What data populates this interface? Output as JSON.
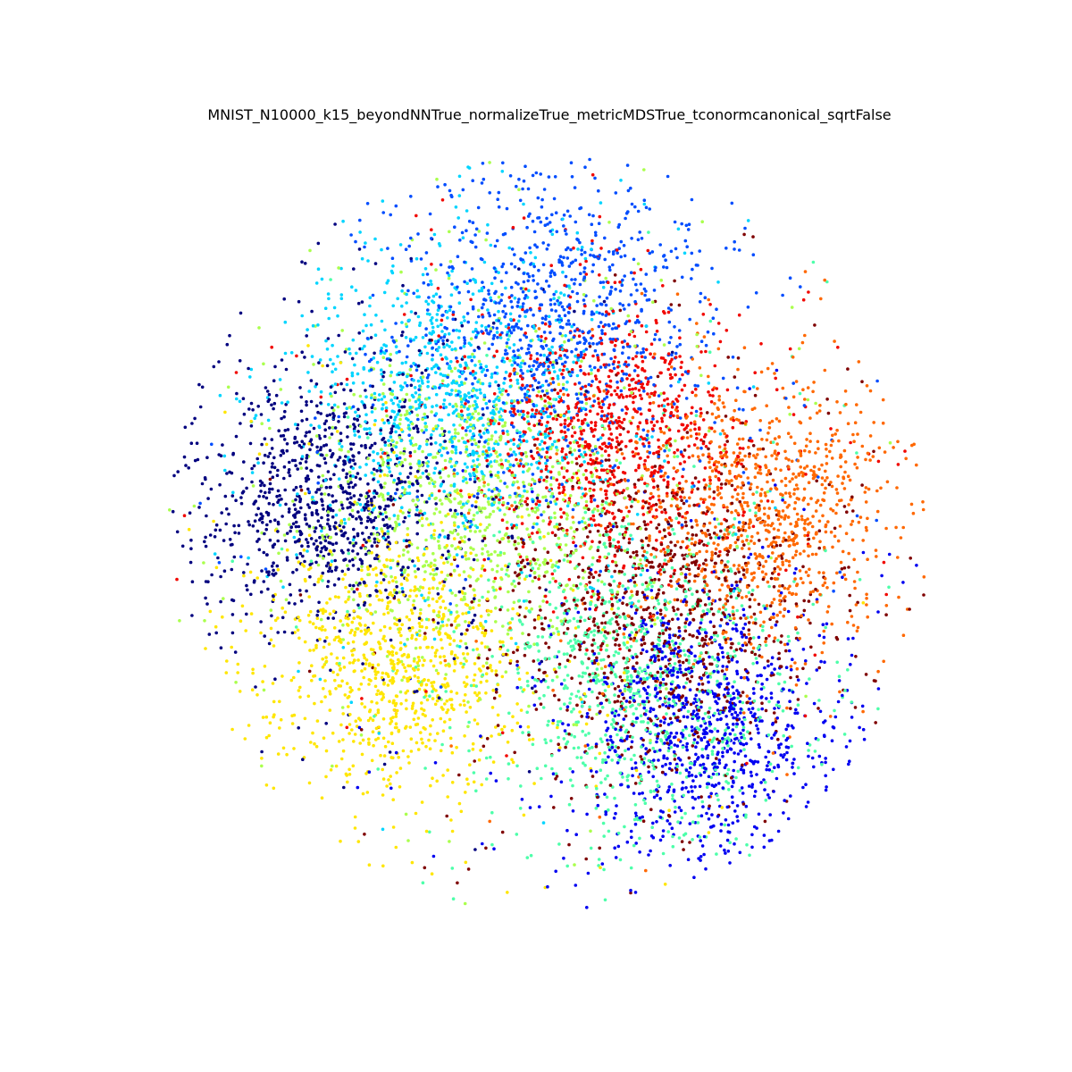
{
  "chart_data": {
    "type": "scatter",
    "title": "MNIST_N10000_k15_beyondNNTrue_normalizeTrue_metricMDSTrue_tconormcanonical_sqrtFalse",
    "xlabel": "",
    "ylabel": "",
    "xlim": [
      -1.0,
      1.0
    ],
    "ylim": [
      -1.0,
      1.0
    ],
    "axes_visible": false,
    "grid": false,
    "legend": "none",
    "n_points_total": 10000,
    "series": [
      {
        "class": 0,
        "color": "#00007f",
        "center": [
          -0.58,
          0.1
        ],
        "spread": 0.17,
        "count": 1000
      },
      {
        "class": 1,
        "color": "#0000f1",
        "center": [
          0.4,
          -0.5
        ],
        "spread": 0.16,
        "count": 1000
      },
      {
        "class": 2,
        "color": "#004dff",
        "center": [
          0.0,
          0.55
        ],
        "spread": 0.2,
        "count": 1000
      },
      {
        "class": 3,
        "color": "#00d5ff",
        "center": [
          -0.25,
          0.35
        ],
        "spread": 0.18,
        "count": 1000
      },
      {
        "class": 4,
        "color": "#4dffaa",
        "center": [
          0.25,
          -0.35
        ],
        "spread": 0.2,
        "count": 1000
      },
      {
        "class": 5,
        "color": "#aaff4d",
        "center": [
          -0.18,
          0.1
        ],
        "spread": 0.2,
        "count": 1000
      },
      {
        "class": 6,
        "color": "#ffe600",
        "center": [
          -0.4,
          -0.32
        ],
        "spread": 0.17,
        "count": 1000
      },
      {
        "class": 7,
        "color": "#ff6800",
        "center": [
          0.55,
          0.05
        ],
        "spread": 0.17,
        "count": 1000
      },
      {
        "class": 8,
        "color": "#f10700",
        "center": [
          0.15,
          0.25
        ],
        "spread": 0.16,
        "count": 1000
      },
      {
        "class": 9,
        "color": "#7f0000",
        "center": [
          0.3,
          -0.2
        ],
        "spread": 0.2,
        "count": 1000
      }
    ]
  }
}
